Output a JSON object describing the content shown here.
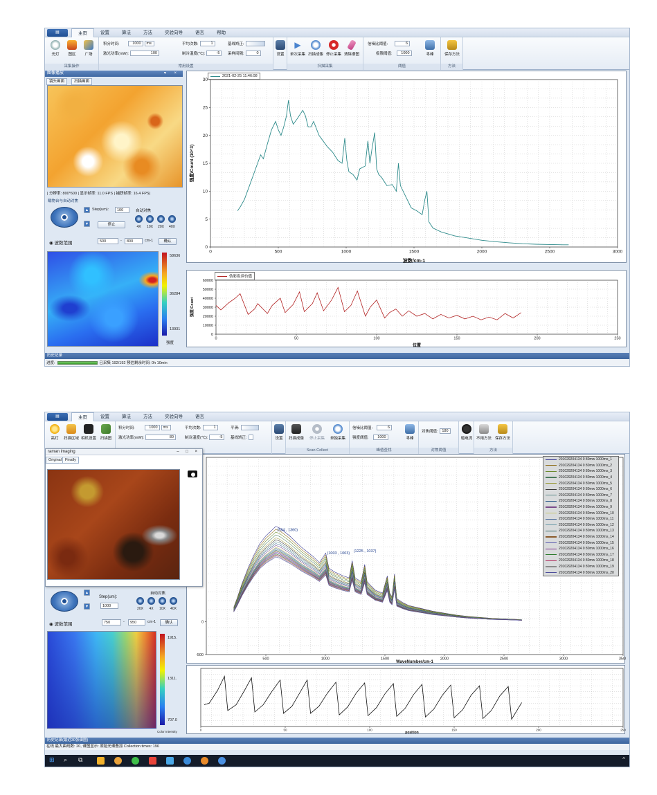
{
  "shot1": {
    "tabs": [
      "主页",
      "设置",
      "算法",
      "方法",
      "实验向导",
      "语言",
      "帮助"
    ],
    "ribbon": {
      "buttons": [
        "光灯",
        "图区",
        "广场"
      ],
      "group_capture": "采集操作",
      "int_time_label": "积分时间:",
      "int_time_value": "1000",
      "int_time_unit": "ms",
      "laser_label": "激光功率(mW):",
      "laser_value": "100",
      "avg_label": "平均次数:",
      "avg_value": "1",
      "temp_label": "制冷温度(℃):",
      "temp_value": "-5",
      "baseline_label": "基线矫正:",
      "interval_label": "采样间隔:",
      "interval_value": "0",
      "group_common": "常用设置",
      "settings_btn": "设置",
      "scan_buttons": [
        "单次采集",
        "扫描成像",
        "停止采集",
        "清除谱图"
      ],
      "group_scan": "扫描采集",
      "snr_label": "信噪比阈值:",
      "snr_value": "6",
      "thresh_label": "极限阈值:",
      "thresh_value": "1000",
      "find_peak": "寻峰",
      "group_threshold": "阈值",
      "save_method": "保存方法",
      "group_method": "方法"
    },
    "left": {
      "panel_title": "图像播放",
      "subtabs": [
        "镜头画面",
        "扫描画面"
      ],
      "resolution_text": "| 分辨率: 800*600 | 显示帧率: 11.0 FPS | 捕获帧率: 16.4 FPS|",
      "stage_title": "载物台与自动对焦",
      "step_label": "Step(um):",
      "step_value": "100",
      "auto_focus": "自动对焦",
      "stop_btn": "停止",
      "lenses": [
        "4X",
        "10X",
        "20X",
        "40X"
      ],
      "wave_range_label": "波数范围",
      "range_min": "500",
      "range_dash": "-",
      "range_max": "800",
      "range_unit": "cm-1",
      "confirm_btn": "确认",
      "colorbar_max": "58636",
      "colorbar_mid": "36284",
      "colorbar_min": "13931",
      "colorbar_label": "强度"
    },
    "status": {
      "history": "历史记录",
      "progress_label": "进度:",
      "progress_text": "已采集 192/192  预估剩余时间: 0h 10min"
    }
  },
  "shot2": {
    "tabs": [
      "主页",
      "设置",
      "算法",
      "方法",
      "实验向导",
      "语言"
    ],
    "ribbon": {
      "buttons": [
        "高灯",
        "扫描区域",
        "相机设置",
        "扫描图"
      ],
      "int_time_label": "积分时间:",
      "int_time_value": "1000",
      "int_time_unit": "ms",
      "laser_label": "激光功率(mW):",
      "laser_value": "80",
      "avg_label": "平均次数:",
      "avg_value": "1",
      "smooth_label": "平滑:",
      "temp_label": "制冷温度(℃):",
      "temp_value": "-5",
      "baseline_label": "基线矫正:",
      "settings_btn": "设置",
      "scan_buttons": [
        "扫描成像",
        "停止采集",
        "单独采集"
      ],
      "group_scan": "Scan Collect",
      "snr_label": "信噪比阈值:",
      "snr_value": "6",
      "thresh_label": "强度阈值:",
      "thresh_value": "1000",
      "find_peak": "寻峰",
      "group_peak": "峰值查找",
      "focus_label": "对焦阈值:",
      "focus_value": "180",
      "group_focus": "对焦阈值",
      "light_btn": "暗电流",
      "method_buttons": [
        "不用方法",
        "保存方法"
      ],
      "group_method": "方法"
    },
    "popup": {
      "title": "raman imaging",
      "tabs": [
        "Original",
        "Finally"
      ],
      "controls": "– □ ×"
    },
    "left": {
      "step_label": "Step(um):",
      "step_value": "1000",
      "auto_focus": "自动对焦",
      "lenses": [
        "20X",
        "4X",
        "10X",
        "40X"
      ],
      "wave_range_label": "波数范围",
      "range_min": "750",
      "range_dash": "-",
      "range_max": "950",
      "range_unit": "cm-1",
      "confirm_btn": "确认",
      "colorbar_max": "1915.",
      "colorbar_mid": "1311.",
      "colorbar_min": "707.0",
      "colorbar_label": "Color Intensity"
    },
    "status": {
      "history": "历史记录(最近30张谱图)",
      "status_text": "在线  最大曲线数: 20,  谱图显示: 原始光谱叠加  Collection times: 196"
    }
  },
  "chart_data": [
    {
      "type": "line",
      "title": "",
      "legend": "2021-02-25 11:46:08",
      "xlabel": "波数/cm-1",
      "ylabel": "强度/Count (10^3)",
      "xlim": [
        0,
        3000
      ],
      "ylim": [
        0,
        30
      ],
      "xticks": [
        0,
        500,
        1000,
        1500,
        2000,
        2500,
        3000
      ],
      "yticks": [
        0,
        5,
        10,
        15,
        20,
        25,
        30
      ],
      "grid": true,
      "series": [
        {
          "color": "#2e8b8b",
          "x": [
            200,
            220,
            250,
            280,
            310,
            340,
            370,
            390,
            420,
            450,
            480,
            500,
            520,
            540,
            560,
            575,
            590,
            610,
            640,
            680,
            700,
            720,
            740,
            760,
            800,
            860,
            900,
            940,
            970,
            990,
            1005,
            1020,
            1050,
            1080,
            1100,
            1140,
            1160,
            1175,
            1190,
            1210,
            1225,
            1240,
            1260,
            1300,
            1340,
            1370,
            1385,
            1400,
            1440,
            1480,
            1520,
            1560,
            1580,
            1595,
            1610,
            1640,
            1700,
            1800,
            1900,
            2000,
            2100,
            2200,
            2300,
            2400,
            2500,
            2600,
            2640
          ],
          "y": [
            6.5,
            7.2,
            8.5,
            10.5,
            12.5,
            14.5,
            16.5,
            15.8,
            18.5,
            21,
            22.5,
            21,
            20,
            21.5,
            23.5,
            26.3,
            23.5,
            22,
            23,
            24.5,
            23.5,
            21.5,
            21.5,
            22.5,
            20,
            18,
            17,
            15.5,
            15,
            19.5,
            15.5,
            13.5,
            13,
            12,
            14,
            14.5,
            19,
            15,
            17.5,
            20.5,
            14,
            13,
            12.5,
            11,
            11.2,
            10,
            15,
            11,
            9,
            7,
            6.5,
            5.8,
            8.5,
            10,
            4.5,
            3.4,
            2.7,
            2,
            1.6,
            1.2,
            0.95,
            0.75,
            0.6,
            0.5,
            0.45,
            0.4,
            0.4
          ]
        }
      ]
    },
    {
      "type": "line",
      "title": "",
      "legend": "伪彩色评价值",
      "xlabel": "位置",
      "ylabel": "强度/Count",
      "xlim": [
        0,
        250
      ],
      "ylim": [
        0,
        60000
      ],
      "xticks": [
        0,
        50,
        100,
        150,
        200,
        250
      ],
      "yticks": [
        0,
        10000,
        20000,
        30000,
        40000,
        50000,
        60000
      ],
      "grid": true,
      "series": [
        {
          "color": "#b22222",
          "x": [
            0,
            3,
            8,
            12,
            15,
            20,
            24,
            26,
            32,
            35,
            40,
            43,
            48,
            52,
            55,
            60,
            63,
            67,
            72,
            76,
            80,
            84,
            88,
            93,
            96,
            100,
            105,
            108,
            112,
            116,
            120,
            125,
            130,
            135,
            140,
            145,
            150,
            155,
            160,
            165,
            170,
            175,
            180,
            185,
            190
          ],
          "y": [
            32000,
            27000,
            35000,
            40000,
            45000,
            22000,
            28000,
            34000,
            23000,
            32000,
            40000,
            24000,
            33000,
            47000,
            25000,
            34000,
            46000,
            26000,
            38000,
            52000,
            25000,
            32000,
            48000,
            20000,
            30000,
            38000,
            18000,
            24000,
            28000,
            20000,
            26000,
            20000,
            23000,
            17000,
            22000,
            18000,
            21000,
            17000,
            20000,
            16000,
            19000,
            16000,
            23000,
            18000,
            24000
          ]
        }
      ]
    },
    {
      "type": "line",
      "title": "",
      "xlabel": "WaveNumber/cm-1",
      "ylabel": "",
      "xlim": [
        0,
        3500
      ],
      "ylim": [
        -500,
        2500
      ],
      "xticks": [
        500,
        1000,
        1500,
        2000,
        2500,
        3000,
        3500
      ],
      "yticks": [
        -500,
        0
      ],
      "grid": true,
      "annotations": [
        "(584 , 1360)",
        "(1003 , 1003)",
        "(1225 , 1037)"
      ],
      "legend_entries": [
        "201029204134 0 80mw 1000ms_1",
        "201029204134 0 80mw 1000ms_2",
        "201029204134 0 80mw 1000ms_3",
        "201029204134 0 80mw 1000ms_4",
        "201029204134 0 80mw 1000ms_5",
        "201029204134 0 80mw 1000ms_6",
        "201029204134 0 80mw 1000ms_7",
        "201029204134 0 80mw 1000ms_8",
        "201029204134 0 80mw 1000ms_9",
        "201029204134 0 80mw 1000ms_10",
        "201029204134 0 80mw 1000ms_11",
        "201029204134 0 80mw 1000ms_12",
        "201029204134 0 80mw 1000ms_13",
        "201029204134 0 80mw 1000ms_14",
        "201029204134 0 80mw 1000ms_15",
        "201029204134 0 80mw 1000ms_16",
        "201029204134 0 80mw 1000ms_17",
        "201029204134 0 80mw 1000ms_18",
        "201029204134 0 80mw 1000ms_19",
        "201029204134 0 80mw 1000ms_20"
      ],
      "series_colors": [
        "#2c2c8c",
        "#8b6914",
        "#6a8a2a",
        "#4a7a5a",
        "#9a9a3a",
        "#3a3a3a",
        "#5a8a8a",
        "#2a5a8a",
        "#7a4a8a",
        "#c8c870",
        "#4a6a9a",
        "#6a9aa8",
        "#3a6a6a",
        "#8a5a2a",
        "#5a5ab0",
        "#7a2a8a",
        "#2a7a2a",
        "#b02a5a",
        "#8a8a8a",
        "#4a4a9a"
      ],
      "base_x": [
        230,
        260,
        300,
        350,
        400,
        450,
        500,
        550,
        584,
        620,
        660,
        700,
        750,
        800,
        850,
        900,
        950,
        1003,
        1030,
        1080,
        1150,
        1200,
        1225,
        1250,
        1300,
        1330,
        1350,
        1380,
        1420,
        1480,
        1520,
        1540,
        1560,
        1580,
        1600,
        1650,
        1700,
        1800,
        1900,
        2000,
        2100,
        2200,
        2300,
        2400,
        2500,
        2600,
        2650
      ],
      "base_y": [
        150,
        250,
        400,
        560,
        700,
        820,
        900,
        960,
        1000,
        980,
        940,
        900,
        840,
        780,
        730,
        680,
        620,
        720,
        560,
        520,
        480,
        460,
        640,
        460,
        420,
        600,
        420,
        380,
        330,
        300,
        480,
        300,
        260,
        500,
        240,
        200,
        170,
        140,
        110,
        90,
        70,
        55,
        45,
        35,
        30,
        25,
        20
      ],
      "scales": [
        1.0,
        0.97,
        0.94,
        0.91,
        0.88,
        0.86,
        0.84,
        0.82,
        0.8,
        0.78,
        0.77,
        0.76,
        0.75,
        0.74,
        0.73,
        0.72,
        0.71,
        0.7,
        0.69,
        0.68
      ]
    },
    {
      "type": "line",
      "title": "",
      "xlabel": "position",
      "ylabel": "",
      "xlim": [
        0,
        250
      ],
      "ylim": [
        1200,
        2000
      ],
      "xticks": [
        0,
        50,
        100,
        150,
        200,
        250
      ],
      "grid": true,
      "series": [
        {
          "color": "#111111",
          "x": [
            2,
            5,
            10,
            14,
            16,
            21,
            26,
            30,
            32,
            37,
            42,
            47,
            49,
            54,
            59,
            63,
            65,
            70,
            75,
            80,
            82,
            87,
            92,
            97,
            99,
            104,
            109,
            114,
            116,
            121,
            126,
            131,
            133,
            138,
            143,
            148,
            150,
            155,
            160,
            165,
            167,
            172,
            177,
            182,
            184,
            190
          ],
          "y": [
            1500,
            1520,
            1700,
            1890,
            1420,
            1500,
            1700,
            1870,
            1400,
            1500,
            1680,
            1840,
            1380,
            1480,
            1680,
            1840,
            1380,
            1480,
            1660,
            1810,
            1360,
            1470,
            1660,
            1800,
            1350,
            1460,
            1650,
            1790,
            1340,
            1450,
            1640,
            1780,
            1330,
            1440,
            1630,
            1770,
            1320,
            1430,
            1630,
            1760,
            1310,
            1420,
            1620,
            1750,
            1300,
            1530
          ]
        }
      ]
    }
  ]
}
